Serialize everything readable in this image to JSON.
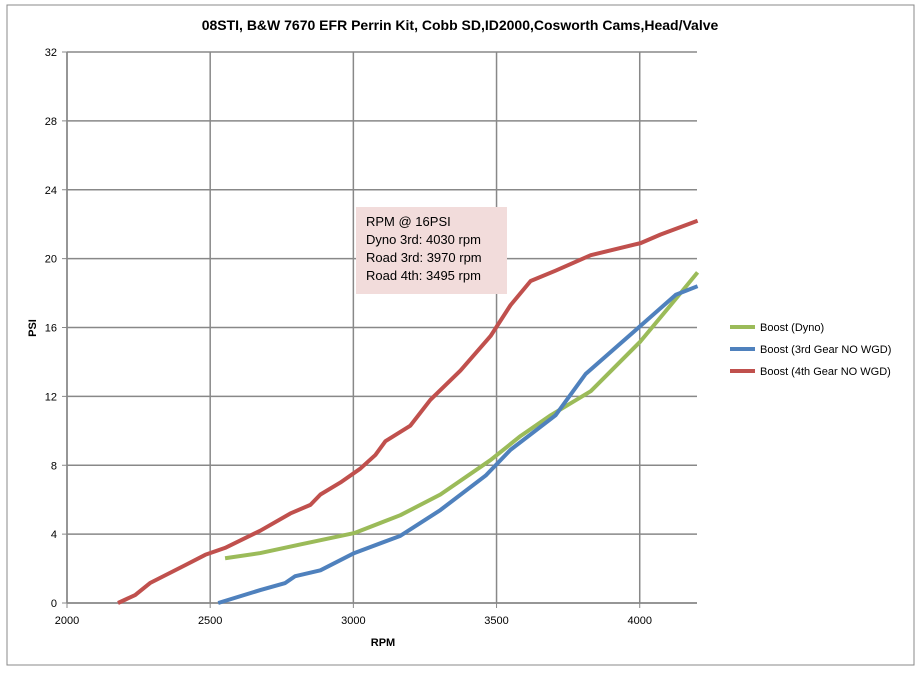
{
  "chart_data": {
    "type": "line",
    "title": "08STI, B&W 7670 EFR Perrin Kit, Cobb SD,ID2000,Cosworth Cams,Head/Valve",
    "xlabel": "RPM",
    "ylabel": "PSI",
    "xlim": [
      2000,
      4200
    ],
    "ylim": [
      0,
      32
    ],
    "xticks": [
      2000,
      2500,
      3000,
      3500,
      4000
    ],
    "yticks": [
      0,
      4,
      8,
      12,
      16,
      20,
      24,
      28,
      32
    ],
    "grid": true,
    "legend_position": "right",
    "series": [
      {
        "name": "Boost (Dyno)",
        "color": "#9bbb59",
        "points": [
          [
            2552,
            2.6
          ],
          [
            2675,
            2.9
          ],
          [
            2815,
            3.4
          ],
          [
            3003,
            4.06
          ],
          [
            3164,
            5.1
          ],
          [
            3304,
            6.3
          ],
          [
            3479,
            8.3
          ],
          [
            3584,
            9.7
          ],
          [
            3689,
            10.9
          ],
          [
            3829,
            12.3
          ],
          [
            4003,
            15.2
          ],
          [
            4108,
            17.3
          ],
          [
            4202,
            19.2
          ]
        ]
      },
      {
        "name": "Boost (3rd Gear NO WGD)",
        "color": "#4f81bd",
        "points": [
          [
            2528,
            0
          ],
          [
            2675,
            0.75
          ],
          [
            2762,
            1.16
          ],
          [
            2797,
            1.56
          ],
          [
            2885,
            1.9
          ],
          [
            3003,
            2.9
          ],
          [
            3164,
            3.9
          ],
          [
            3304,
            5.4
          ],
          [
            3462,
            7.4
          ],
          [
            3549,
            8.9
          ],
          [
            3706,
            10.9
          ],
          [
            3811,
            13.3
          ],
          [
            4003,
            16.1
          ],
          [
            4126,
            17.9
          ],
          [
            4202,
            18.4
          ]
        ]
      },
      {
        "name": "Boost (4th Gear NO WGD)",
        "color": "#c0504d",
        "points": [
          [
            2178,
            0
          ],
          [
            2238,
            0.46
          ],
          [
            2290,
            1.16
          ],
          [
            2413,
            2.2
          ],
          [
            2483,
            2.8
          ],
          [
            2552,
            3.2
          ],
          [
            2675,
            4.2
          ],
          [
            2780,
            5.2
          ],
          [
            2850,
            5.7
          ],
          [
            2885,
            6.3
          ],
          [
            2955,
            7.0
          ],
          [
            3024,
            7.8
          ],
          [
            3077,
            8.6
          ],
          [
            3112,
            9.4
          ],
          [
            3199,
            10.3
          ],
          [
            3269,
            11.8
          ],
          [
            3374,
            13.5
          ],
          [
            3479,
            15.5
          ],
          [
            3549,
            17.3
          ],
          [
            3619,
            18.7
          ],
          [
            3706,
            19.3
          ],
          [
            3829,
            20.2
          ],
          [
            4003,
            20.9
          ],
          [
            4073,
            21.4
          ],
          [
            4202,
            22.2
          ]
        ]
      }
    ],
    "annotation": [
      "RPM @ 16PSI",
      "Dyno 3rd: 4030  rpm",
      "Road 3rd: 3970  rpm",
      "Road 4th: 3495  rpm"
    ]
  }
}
